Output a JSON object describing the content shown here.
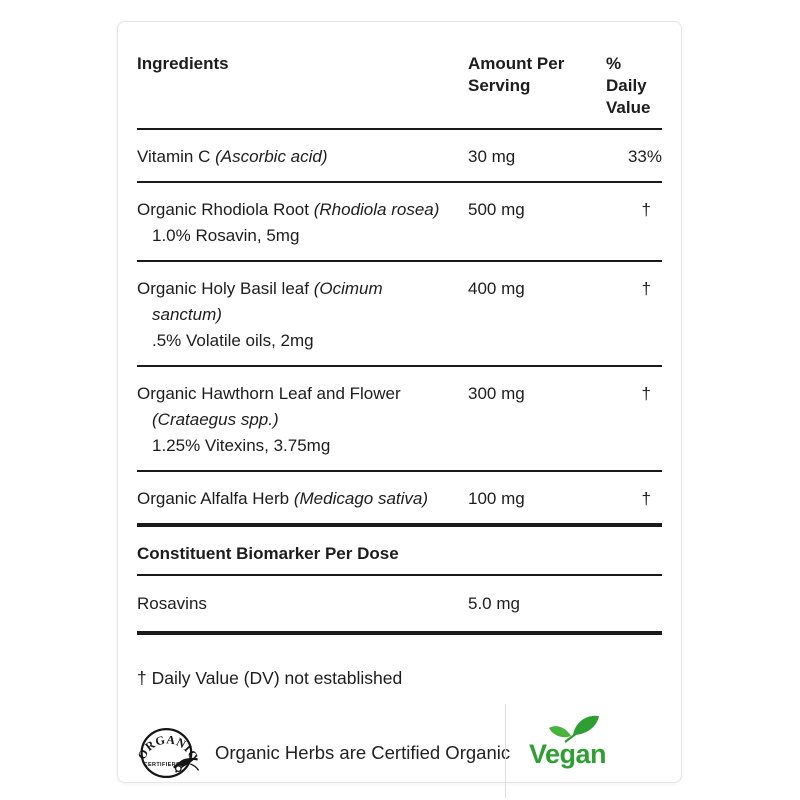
{
  "card": {
    "header": {
      "col_ingredients": "Ingredients",
      "col_amount_lines": [
        "Amount Per",
        "Serving"
      ],
      "col_dv_lines": [
        "% Daily",
        "Value"
      ]
    },
    "ingredients": [
      {
        "lines": [
          {
            "plain": "Vitamin C ",
            "italic": "(Ascorbic acid)"
          }
        ],
        "sub": "",
        "amount": "30 mg",
        "daily_value": "33%"
      },
      {
        "lines": [
          {
            "plain": "Organic Rhodiola Root ",
            "italic": "(Rhodiola rosea)"
          }
        ],
        "sub": "1.0% Rosavin, 5mg",
        "amount": "500 mg",
        "daily_value": "†"
      },
      {
        "lines": [
          {
            "plain": "Organic Holy Basil leaf ",
            "italic": "(Ocimum"
          },
          {
            "plain": "",
            "italic": "sanctum)"
          }
        ],
        "sub": ".5% Volatile oils, 2mg",
        "amount": "400 mg",
        "daily_value": "†"
      },
      {
        "lines": [
          {
            "plain": "Organic Hawthorn Leaf and Flower",
            "italic": ""
          },
          {
            "plain": "",
            "italic": "(Crataegus spp.)"
          }
        ],
        "sub": "1.25% Vitexins, 3.75mg",
        "amount": "300 mg",
        "daily_value": "†"
      },
      {
        "lines": [
          {
            "plain": "Organic Alfalfa Herb ",
            "italic": "(Medicago sativa)"
          }
        ],
        "sub": "",
        "amount": "100 mg",
        "daily_value": "†"
      }
    ],
    "section_title": "Constituent Biomarker Per Dose",
    "biomarkers": [
      {
        "name": "Rosavins",
        "amount": "5.0 mg",
        "daily_value": ""
      }
    ],
    "footnote": "† Daily Value (DV) not established",
    "footer": {
      "badge_arc_text": "ORGANIC",
      "badge_sub_text": "CERTIFIERS",
      "certified_text": "Organic Herbs are Certified Organic",
      "vegan_text": "Vegan"
    },
    "colors": {
      "vegan_green": "#2f9e33",
      "leaf_green_light": "#4ab33e",
      "text": "#1d1d1d",
      "rule": "#1a1a1a",
      "card_border": "#e5e5e5",
      "footer_divider": "#dddddd"
    }
  }
}
